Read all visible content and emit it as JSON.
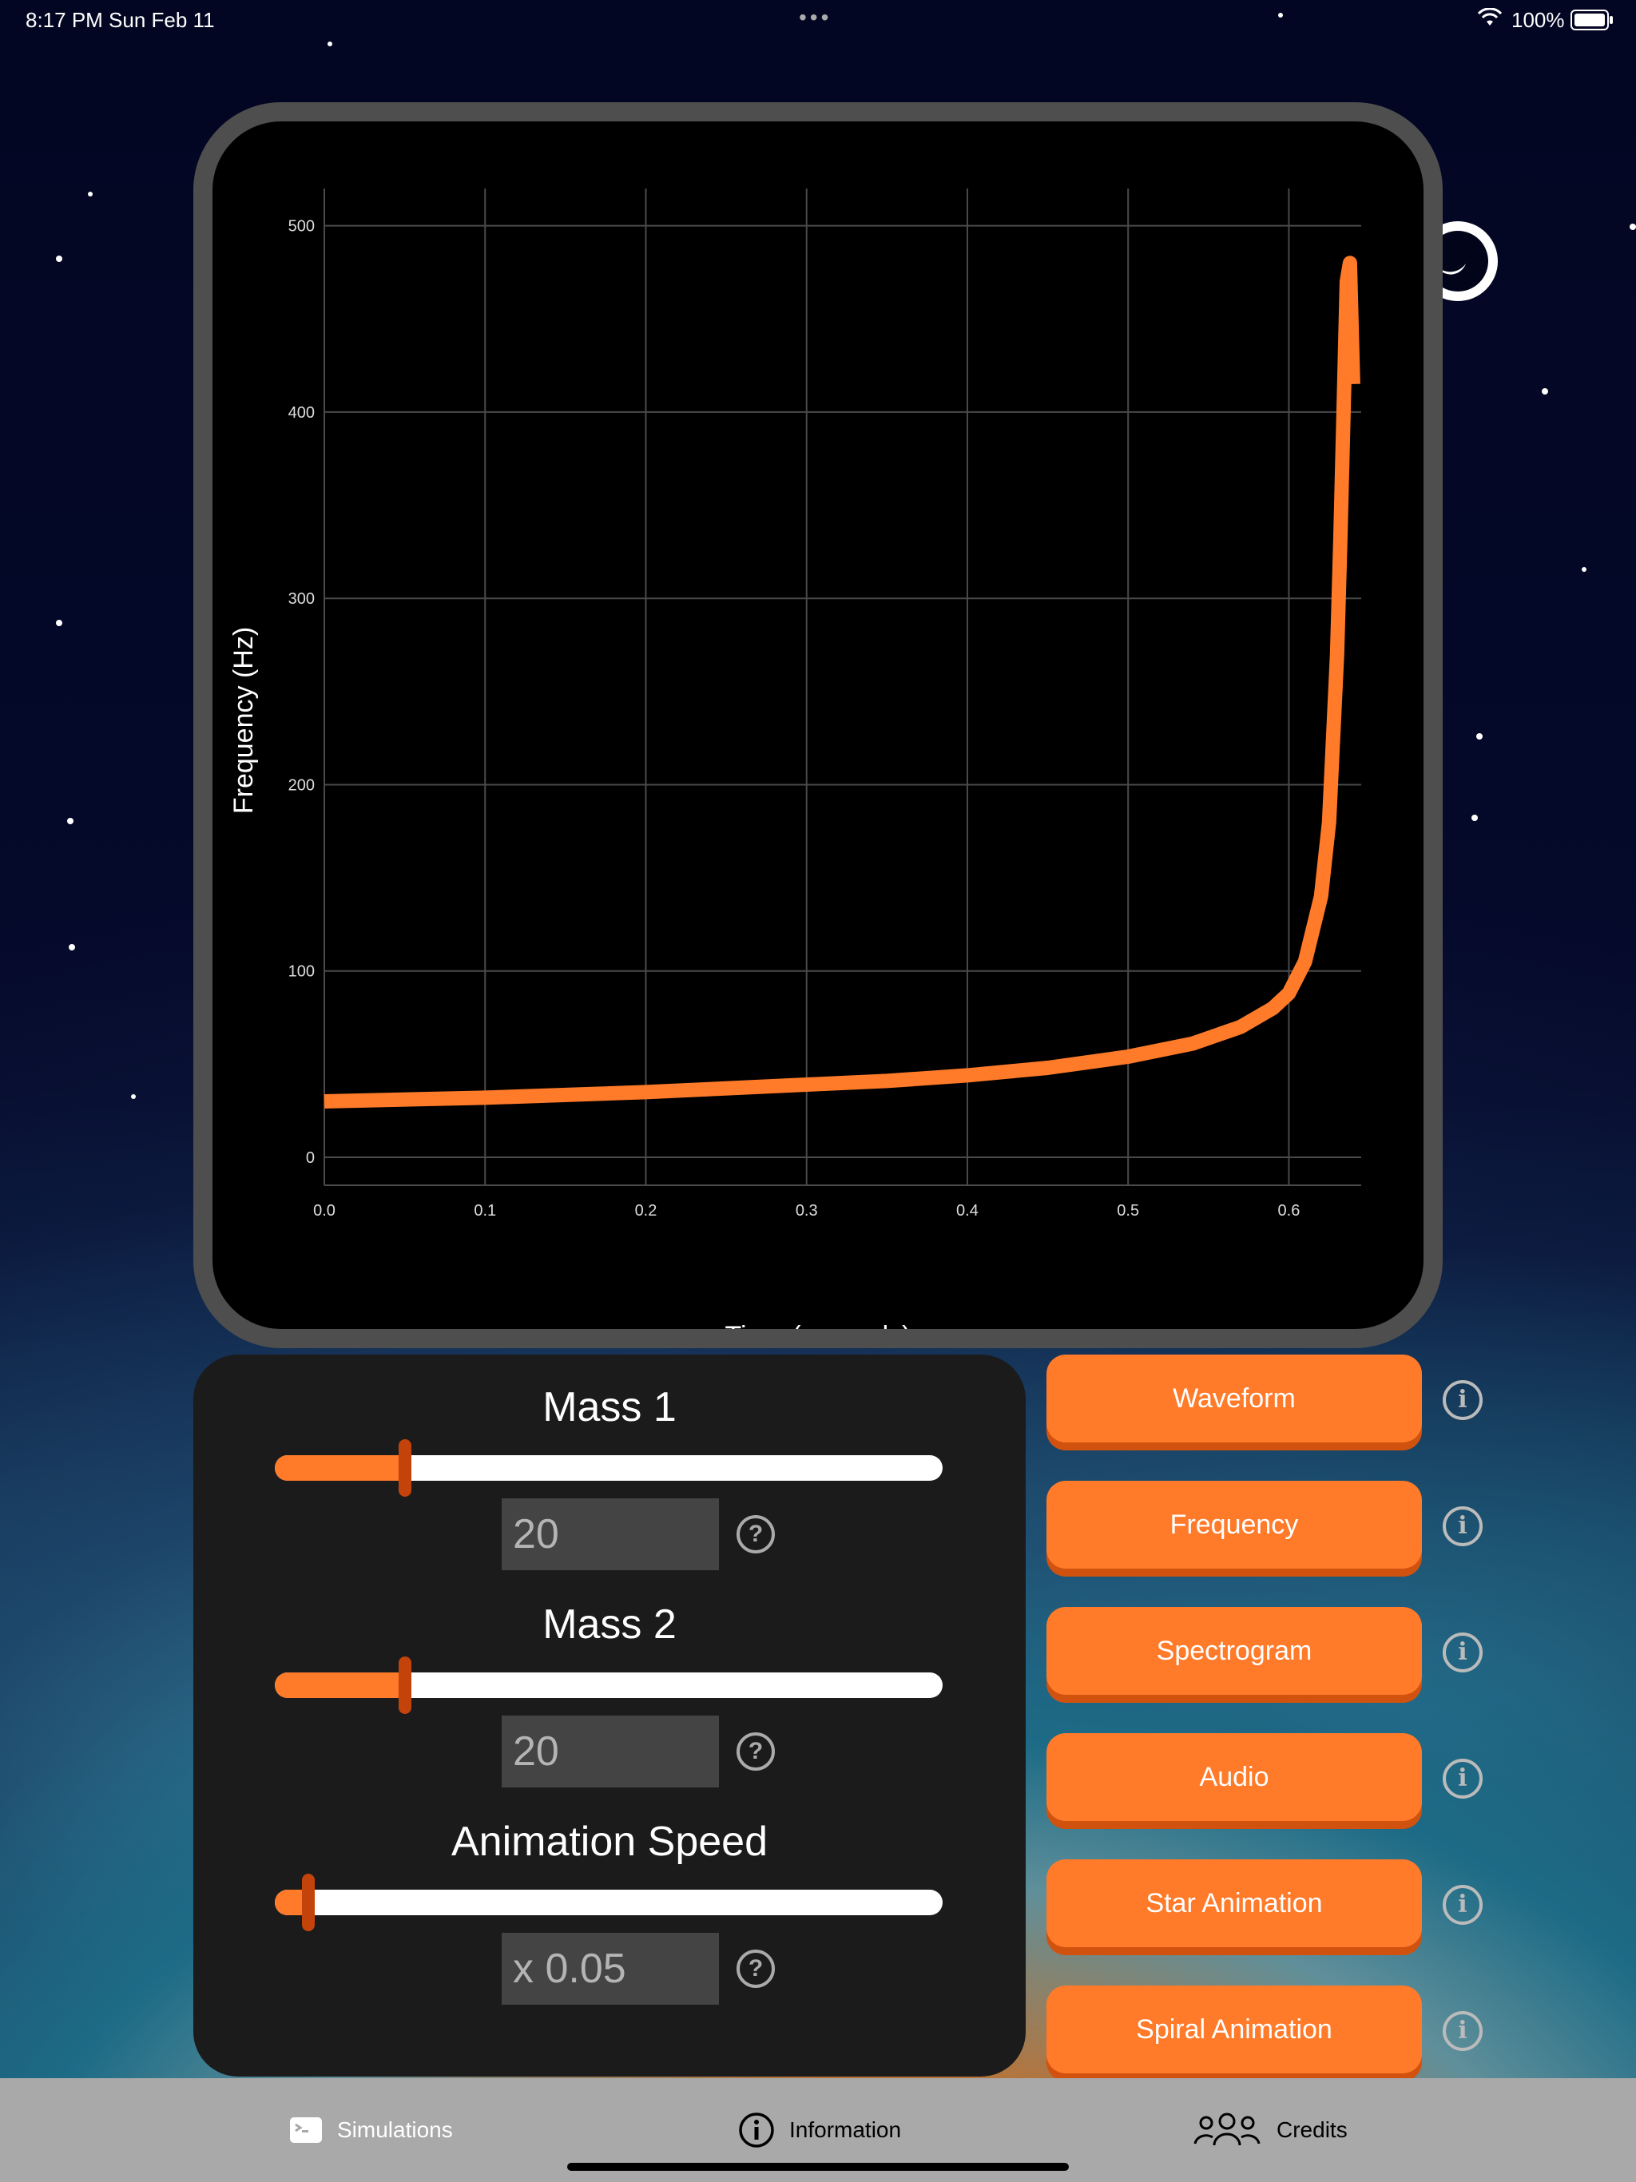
{
  "status_bar": {
    "time": "8:17 PM  Sun Feb 11",
    "battery": "100%"
  },
  "chart_data": {
    "type": "line",
    "title": "",
    "xlabel": "Time (seconds)",
    "ylabel": "Frequency (Hz)",
    "xlim": [
      0,
      0.645
    ],
    "ylim": [
      -15,
      520
    ],
    "x_ticks": [
      "0.0",
      "0.1",
      "0.2",
      "0.3",
      "0.4",
      "0.5",
      "0.6"
    ],
    "y_ticks": [
      "0",
      "100",
      "200",
      "300",
      "400",
      "500"
    ],
    "grid": true,
    "series": [
      {
        "color": "#ff7a29",
        "x": [
          0.0,
          0.1,
          0.2,
          0.3,
          0.35,
          0.4,
          0.45,
          0.5,
          0.54,
          0.57,
          0.59,
          0.6,
          0.61,
          0.62,
          0.625,
          0.63,
          0.632,
          0.634,
          0.636,
          0.638,
          0.64
        ],
        "y": [
          30,
          32,
          35,
          39,
          41,
          44,
          48,
          54,
          61,
          70,
          80,
          88,
          105,
          140,
          180,
          270,
          330,
          400,
          470,
          480,
          415
        ]
      }
    ]
  },
  "controls": {
    "mass1": {
      "label": "Mass 1",
      "value": "20",
      "fraction": 0.195
    },
    "mass2": {
      "label": "Mass 2",
      "value": "20",
      "fraction": 0.195
    },
    "speed": {
      "label": "Animation Speed",
      "value": "x 0.05",
      "fraction": 0.05
    }
  },
  "buttons": {
    "waveform": "Waveform",
    "frequency": "Frequency",
    "spectrogram": "Spectrogram",
    "audio": "Audio",
    "star_animation": "Star Animation",
    "spiral_animation": "Spiral Animation"
  },
  "tabs": {
    "simulations": "Simulations",
    "information": "Information",
    "credits": "Credits"
  },
  "colors": {
    "accent": "#ff7a29",
    "thumb": "#c4430b",
    "grid": "#4a4a4a"
  }
}
